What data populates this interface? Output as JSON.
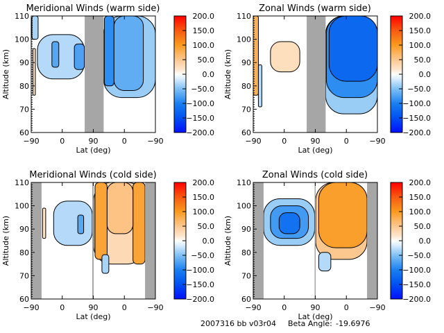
{
  "chart_data": [
    {
      "type": "heatmap",
      "title": "Meridional Winds (warm side)",
      "xlabel": "Lat (deg)",
      "ylabel": "Altitude (km)",
      "xticks": [
        "-90",
        "0",
        "90",
        "0",
        "-90"
      ],
      "yticks": [
        "60",
        "70",
        "80",
        "90",
        "100",
        "110"
      ],
      "ylim": [
        60,
        110
      ],
      "gap_regions": [
        [
          65,
          120
        ]
      ],
      "regions": [
        {
          "lat": [
            -85,
            -78
          ],
          "alt": [
            76,
            96
          ],
          "value": 20
        },
        {
          "lat": [
            -88,
            -70
          ],
          "alt": [
            100,
            110
          ],
          "value": -35
        },
        {
          "lat": [
            -72,
            64
          ],
          "alt": [
            83,
            102
          ],
          "value": -30
        },
        {
          "lat": [
            -30,
            -10
          ],
          "alt": [
            88,
            99
          ],
          "value": -70
        },
        {
          "lat": [
            35,
            64
          ],
          "alt": [
            87,
            98
          ],
          "value": -75
        },
        {
          "lat": [
            120,
            270
          ],
          "alt": [
            75,
            110
          ],
          "value": -40
        },
        {
          "lat": [
            122,
            150
          ],
          "alt": [
            80,
            110
          ],
          "value": -90
        },
        {
          "lat": [
            150,
            235
          ],
          "alt": [
            78,
            110
          ],
          "value": -65
        }
      ]
    },
    {
      "type": "heatmap",
      "title": "Zonal Winds (warm side)",
      "xlabel": "Lat (deg)",
      "ylabel": "Altitude (km)",
      "xticks": [
        "-90",
        "0",
        "90",
        "0",
        "-90"
      ],
      "yticks": [
        "60",
        "70",
        "80",
        "90",
        "100",
        "110"
      ],
      "ylim": [
        60,
        110
      ],
      "gap_regions": [
        [
          65,
          120
        ]
      ],
      "regions": [
        {
          "lat": [
            -90,
            -75
          ],
          "alt": [
            76,
            110
          ],
          "value": 75
        },
        {
          "lat": [
            -75,
            -65
          ],
          "alt": [
            71,
            89
          ],
          "value": -30
        },
        {
          "lat": [
            -40,
            45
          ],
          "alt": [
            86,
            99
          ],
          "value": 25
        },
        {
          "lat": [
            120,
            270
          ],
          "alt": [
            68,
            110
          ],
          "value": -40
        },
        {
          "lat": [
            122,
            270
          ],
          "alt": [
            75,
            110
          ],
          "value": -90
        },
        {
          "lat": [
            130,
            270
          ],
          "alt": [
            82,
            110
          ],
          "value": -125
        }
      ]
    },
    {
      "type": "heatmap",
      "title": "Meridional Winds (cold side)",
      "xlabel": "Lat (deg)",
      "ylabel": "Altitude (km)",
      "xticks": [
        "-90",
        "0",
        "90",
        "0",
        "-90"
      ],
      "yticks": [
        "60",
        "70",
        "80",
        "90",
        "100",
        "110"
      ],
      "ylim": [
        60,
        110
      ],
      "gap_regions": [
        [
          -90,
          -60
        ],
        [
          87,
          91
        ],
        [
          240,
          270
        ]
      ],
      "regions": [
        {
          "lat": [
            -57,
            -48
          ],
          "alt": [
            86,
            99
          ],
          "value": 20
        },
        {
          "lat": [
            -25,
            87
          ],
          "alt": [
            83,
            102
          ],
          "value": -30
        },
        {
          "lat": [
            45,
            62
          ],
          "alt": [
            88,
            96
          ],
          "value": -70
        },
        {
          "lat": [
            91,
            240
          ],
          "alt": [
            75,
            110
          ],
          "value": 30
        },
        {
          "lat": [
            95,
            130
          ],
          "alt": [
            77,
            110
          ],
          "value": 90
        },
        {
          "lat": [
            205,
            240
          ],
          "alt": [
            75,
            110
          ],
          "value": 90
        },
        {
          "lat": [
            130,
            205
          ],
          "alt": [
            88,
            110
          ],
          "value": 55
        },
        {
          "lat": [
            115,
            135
          ],
          "alt": [
            71,
            79
          ],
          "value": -35
        }
      ]
    },
    {
      "type": "heatmap",
      "title": "Zonal Winds (cold side)",
      "xlabel": "Lat (deg)",
      "ylabel": "Altitude (km)",
      "xticks": [
        "-90",
        "0",
        "90",
        "0",
        "-90"
      ],
      "yticks": [
        "60",
        "70",
        "80",
        "90",
        "100",
        "110"
      ],
      "ylim": [
        60,
        110
      ],
      "gap_regions": [
        [
          -90,
          -60
        ],
        [
          88,
          91
        ],
        [
          240,
          270
        ]
      ],
      "regions": [
        {
          "lat": [
            -60,
            88
          ],
          "alt": [
            83,
            103
          ],
          "value": -40
        },
        {
          "lat": [
            -40,
            70
          ],
          "alt": [
            86,
            100
          ],
          "value": -80
        },
        {
          "lat": [
            -15,
            45
          ],
          "alt": [
            88,
            97
          ],
          "value": -115
        },
        {
          "lat": [
            91,
            240
          ],
          "alt": [
            77,
            110
          ],
          "value": 50
        },
        {
          "lat": [
            100,
            240
          ],
          "alt": [
            82,
            110
          ],
          "value": 95
        },
        {
          "lat": [
            100,
            135
          ],
          "alt": [
            72,
            80
          ],
          "value": -30
        }
      ]
    }
  ],
  "colorbar": {
    "range": [
      -200,
      200
    ],
    "tick_labels": [
      "200.0",
      "150.0",
      "100.0",
      "50.0",
      "0.0",
      "-50.0",
      "-100.0",
      "-150.0",
      "-200.0"
    ],
    "stops": [
      {
        "v": -200,
        "c": "#0010ff"
      },
      {
        "v": -150,
        "c": "#0050f0"
      },
      {
        "v": -100,
        "c": "#1a80f0"
      },
      {
        "v": -50,
        "c": "#80c0f4"
      },
      {
        "v": -15,
        "c": "#dceefc"
      },
      {
        "v": 0,
        "c": "#ffffff"
      },
      {
        "v": 15,
        "c": "#fde8d0"
      },
      {
        "v": 50,
        "c": "#fcc890"
      },
      {
        "v": 100,
        "c": "#fa9a20"
      },
      {
        "v": 150,
        "c": "#f85a10"
      },
      {
        "v": 200,
        "c": "#ff0000"
      }
    ]
  },
  "gap_color": "#a6a6a6",
  "footer": {
    "run_id": "2007316 bb v03r04",
    "beta_angle_label": "Beta Angle:",
    "beta_angle_value": "-19.6976"
  }
}
